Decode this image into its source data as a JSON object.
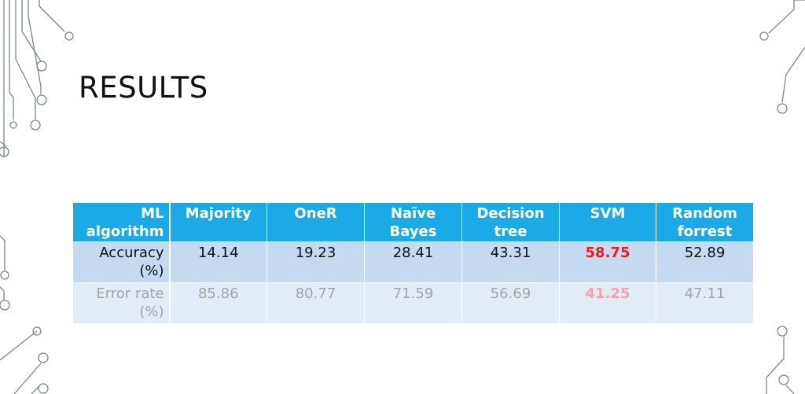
{
  "slide": {
    "title": "RESULTS"
  },
  "table": {
    "headers": [
      "ML algorithm",
      "Majority",
      "OneR",
      "Naïve Bayes",
      "Decision tree",
      "SVM",
      "Random forrest"
    ],
    "rows": [
      {
        "label": "Accuracy (%)",
        "values": [
          "14.14",
          "19.23",
          "28.41",
          "43.31",
          "58.75",
          "52.89"
        ]
      },
      {
        "label": "Error rate (%)",
        "values": [
          "85.86",
          "80.77",
          "71.59",
          "56.69",
          "41.25",
          "47.11"
        ]
      }
    ]
  },
  "colors": {
    "header_bg": "#1caae6",
    "accuracy_row_bg": "#c5daf0",
    "error_row_bg": "#e2ecf7",
    "highlight_accuracy": "#ee1c25",
    "highlight_error": "#f4a3a6",
    "circuit_lines": "#7a8794"
  }
}
